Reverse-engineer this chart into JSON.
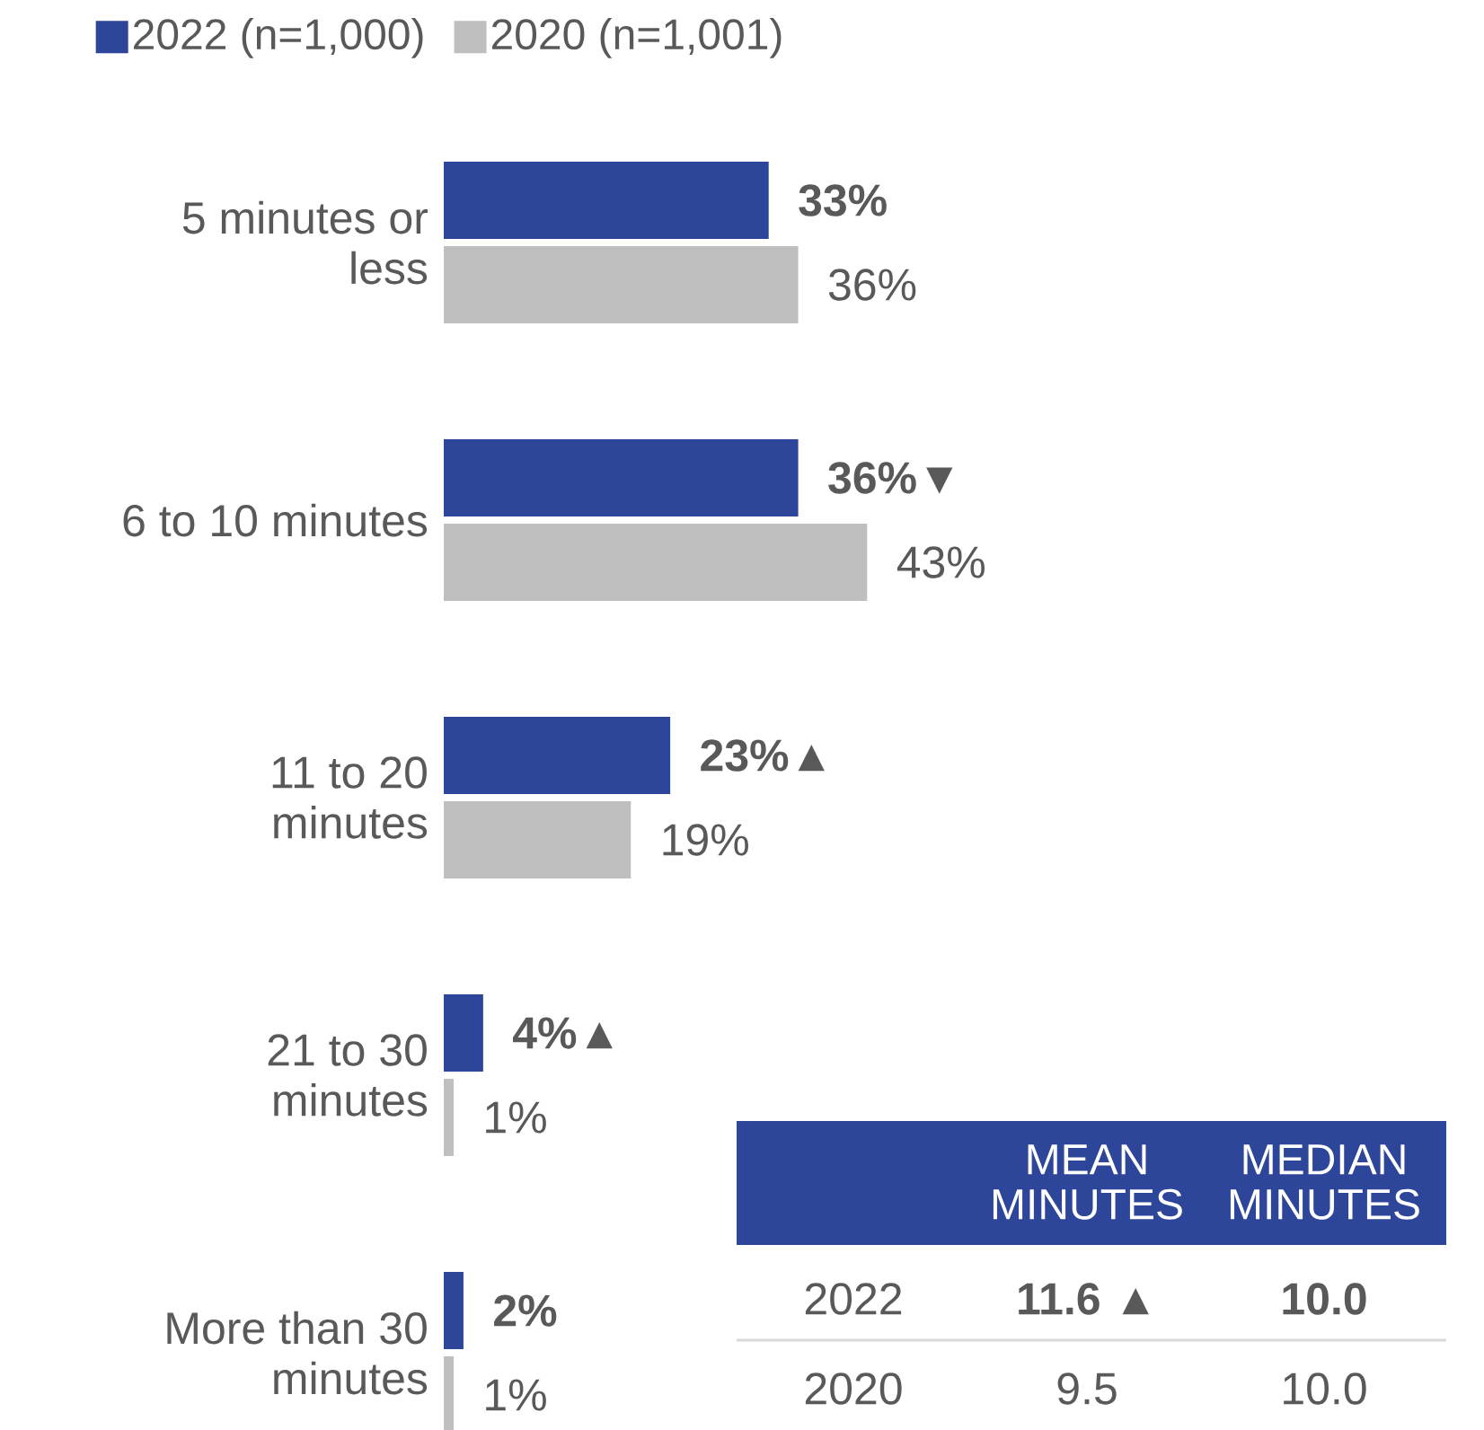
{
  "chart_data": {
    "type": "bar",
    "orientation": "horizontal",
    "legend": "top left",
    "categories": [
      "5 minutes or less",
      "6 to 10 minutes",
      "11 to 20 minutes",
      "21 to 30 minutes",
      "More than 30 minutes"
    ],
    "series": [
      {
        "name": "2022 (n=1,000)",
        "color": "#2e4699",
        "values": [
          33,
          36,
          23,
          4,
          2
        ],
        "value_labels": [
          "33%",
          "36%▼",
          "23%▲",
          "4%▲",
          "2%"
        ]
      },
      {
        "name": "2020 (n=1,001)",
        "color": "#bfbfbf",
        "values": [
          36,
          43,
          19,
          1,
          1
        ],
        "value_labels": [
          "36%",
          "43%",
          "19%",
          "1%",
          "1%"
        ]
      }
    ],
    "annotations": [
      "MEAN MINUTES",
      "MEDIAN MINUTES",
      "2022",
      "11.6 ▲",
      "10.0",
      "2020",
      "9.5",
      "10.0"
    ]
  }
}
